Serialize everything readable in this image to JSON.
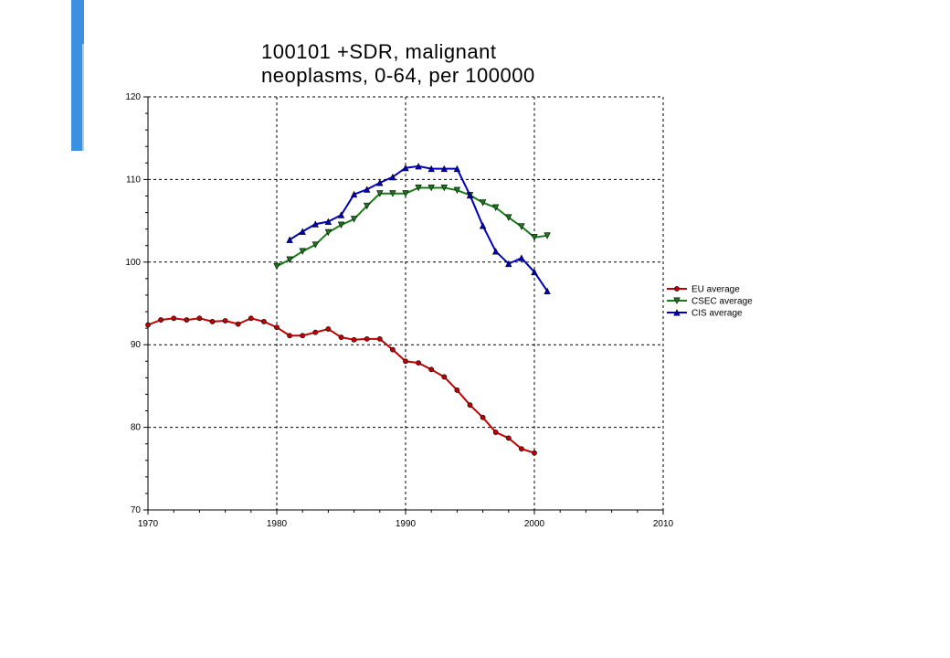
{
  "chart_data": {
    "type": "line",
    "title_lines": [
      "100101 +SDR, malignant",
      "neoplasms, 0-64, per 100000"
    ],
    "xlabel": "",
    "ylabel": "",
    "xlim": [
      1970,
      2010
    ],
    "ylim": [
      70,
      120
    ],
    "x_ticks": [
      1970,
      1980,
      1990,
      2000,
      2010
    ],
    "y_ticks": [
      70,
      80,
      90,
      100,
      110,
      120
    ],
    "grid": true,
    "legend_position": "right",
    "series": [
      {
        "name": "EU average",
        "color": "#c00000",
        "marker": "circle",
        "x": [
          1970,
          1971,
          1972,
          1973,
          1974,
          1975,
          1976,
          1977,
          1978,
          1979,
          1980,
          1981,
          1982,
          1983,
          1984,
          1985,
          1986,
          1987,
          1988,
          1989,
          1990,
          1991,
          1992,
          1993,
          1994,
          1995,
          1996,
          1997,
          1998,
          1999,
          2000
        ],
        "values": [
          92.4,
          93.0,
          93.2,
          93.0,
          93.2,
          92.8,
          92.9,
          92.5,
          93.2,
          92.8,
          92.1,
          91.1,
          91.1,
          91.5,
          91.9,
          90.9,
          90.6,
          90.7,
          90.7,
          89.4,
          88.0,
          87.8,
          87.0,
          86.1,
          84.5,
          82.7,
          81.2,
          79.4,
          78.7,
          77.4,
          76.9
        ]
      },
      {
        "name": "CSEC average",
        "color": "#1a7a1a",
        "marker": "triangle-down",
        "x": [
          1980,
          1981,
          1982,
          1983,
          1984,
          1985,
          1986,
          1987,
          1988,
          1989,
          1990,
          1991,
          1992,
          1993,
          1994,
          1995,
          1996,
          1997,
          1998,
          1999,
          2000,
          2001
        ],
        "values": [
          99.5,
          100.3,
          101.3,
          102.1,
          103.6,
          104.5,
          105.2,
          106.8,
          108.3,
          108.3,
          108.3,
          109.0,
          109.0,
          109.0,
          108.7,
          108.1,
          107.2,
          106.6,
          105.4,
          104.3,
          103.0,
          103.2
        ]
      },
      {
        "name": "CIS average",
        "color": "#0000c0",
        "marker": "triangle-up",
        "x": [
          1981,
          1982,
          1983,
          1984,
          1985,
          1986,
          1987,
          1988,
          1989,
          1990,
          1991,
          1992,
          1993,
          1994,
          1995,
          1996,
          1997,
          1998,
          1999,
          2000,
          2001
        ],
        "values": [
          102.7,
          103.7,
          104.6,
          104.9,
          105.7,
          108.2,
          108.8,
          109.6,
          110.3,
          111.4,
          111.6,
          111.3,
          111.3,
          111.3,
          108.1,
          104.4,
          101.3,
          99.8,
          100.5,
          98.8,
          96.5
        ]
      }
    ]
  }
}
